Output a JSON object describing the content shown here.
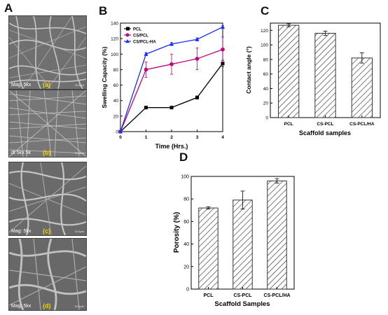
{
  "panels": {
    "A": "A",
    "B": "B",
    "C": "C",
    "D": "D"
  },
  "sem_images": [
    {
      "label": "Mag: 5kx",
      "tag": "(a)",
      "scale": "10.0µm"
    },
    {
      "label": "dt  5kx  5k",
      "tag": "(b)",
      "scale": "10.0µm"
    },
    {
      "label": "Mag: 5kx",
      "tag": "(c)",
      "scale": "10.0µm"
    },
    {
      "label": "Mag: 5kx",
      "tag": "(d)",
      "scale": "10.0µm"
    }
  ],
  "chart_data": [
    {
      "id": "B",
      "type": "line",
      "xlabel": "Time (Hrs.)",
      "ylabel": "Swelling Capacity (%)",
      "x": [
        0,
        1,
        2,
        3,
        4
      ],
      "xlim": [
        0,
        4
      ],
      "ylim": [
        0,
        140
      ],
      "xticks": [
        "0",
        "1",
        "2",
        "3",
        "4"
      ],
      "yticks": [
        "0",
        "20",
        "40",
        "60",
        "80",
        "100",
        "120",
        "140"
      ],
      "legend_position": "top-left",
      "series": [
        {
          "name": "PCL",
          "color": "#000000",
          "marker": "square",
          "values": [
            0,
            31,
            31,
            44,
            88
          ],
          "errors": [
            0,
            1,
            1,
            2,
            4
          ]
        },
        {
          "name": "CS/PCL",
          "color": "#c4007a",
          "marker": "circle",
          "values": [
            0,
            80,
            87,
            94,
            106
          ],
          "errors": [
            0,
            10,
            13,
            14,
            16
          ]
        },
        {
          "name": "CS/PCL-HA",
          "color": "#1a2cff",
          "marker": "triangle",
          "values": [
            0,
            100,
            113,
            119,
            135
          ],
          "errors": [
            0,
            2,
            2,
            2,
            2
          ]
        }
      ]
    },
    {
      "id": "C",
      "type": "bar",
      "xlabel": "Scaffold samples",
      "ylabel": "Contact angle (°)",
      "categories": [
        "PCL",
        "CS-PCL",
        "CS-PCL/HA"
      ],
      "values": [
        127,
        116,
        82
      ],
      "errors": [
        2,
        3,
        7
      ],
      "ylim": [
        0,
        130
      ],
      "yticks": [
        "0",
        "20",
        "40",
        "60",
        "80",
        "100",
        "120"
      ]
    },
    {
      "id": "D",
      "type": "bar",
      "xlabel": "Scaffold Samples",
      "ylabel": "Porosity (%)",
      "categories": [
        "PCL",
        "CS-PCL",
        "CS-PCL/HA"
      ],
      "values": [
        72,
        79,
        96
      ],
      "errors": [
        1,
        8,
        2
      ],
      "ylim": [
        0,
        100
      ],
      "yticks": [
        "0",
        "20",
        "40",
        "60",
        "80",
        "100"
      ]
    }
  ]
}
